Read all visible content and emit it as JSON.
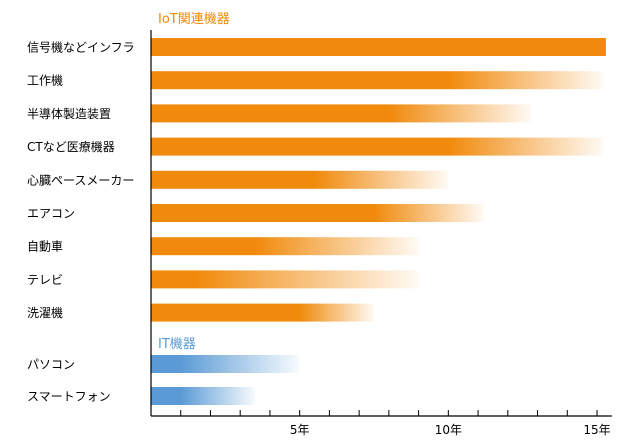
{
  "chart_data": {
    "type": "bar",
    "orientation": "horizontal",
    "groups": [
      {
        "label": "IoT関連機器",
        "color": "#f08a0c",
        "items": [
          {
            "name": "信号機などインフラ",
            "solid_end": 15.3,
            "fade_end": 15.3
          },
          {
            "name": "工作機",
            "solid_end": 10.0,
            "fade_end": 15.2
          },
          {
            "name": "半導体製造装置",
            "solid_end": 8.0,
            "fade_end": 12.8
          },
          {
            "name": "CTなど医療機器",
            "solid_end": 10.0,
            "fade_end": 15.2
          },
          {
            "name": "心臓ペースメーカー",
            "solid_end": 5.5,
            "fade_end": 10.0
          },
          {
            "name": "エアコン",
            "solid_end": 7.5,
            "fade_end": 11.2
          },
          {
            "name": "自動車",
            "solid_end": 3.5,
            "fade_end": 9.0
          },
          {
            "name": "テレビ",
            "solid_end": 1.5,
            "fade_end": 9.0
          },
          {
            "name": "洗濯機",
            "solid_end": 5.0,
            "fade_end": 7.5
          }
        ]
      },
      {
        "label": "IT機器",
        "color": "#5b9bd5",
        "items": [
          {
            "name": "パソコン",
            "solid_end": 1.0,
            "fade_end": 5.0
          },
          {
            "name": "スマートフォン",
            "solid_end": 1.0,
            "fade_end": 3.5
          }
        ]
      }
    ],
    "x_ticks": [
      {
        "value": 5,
        "label": "5年"
      },
      {
        "value": 10,
        "label": "10年"
      },
      {
        "value": 15,
        "label": "15年"
      }
    ],
    "xlim": [
      0,
      15.5
    ],
    "minor_tick_step": 1,
    "grid": false
  }
}
